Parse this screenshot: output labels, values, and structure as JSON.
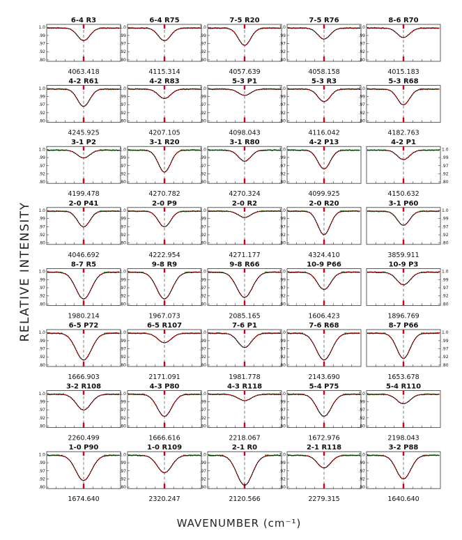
{
  "chart_data": {
    "type": "line",
    "xlabel": "WAVENUMBER  (cm⁻¹)",
    "ylabel": "RELATIVE INTENSITY",
    "yticks": [
      "1.0",
      ".99",
      ".97",
      ".92",
      ".80"
    ],
    "grid_columns": 5,
    "grid_rows": 8,
    "ytick_side_per_column": [
      "left",
      "left",
      "left",
      "left",
      "right"
    ],
    "series_colors": {
      "observed": "#000000",
      "model": "#cc0000",
      "telluric": "#2aa02a",
      "center_marker": "#cc0022"
    },
    "panels": [
      {
        "title": "6-4 R3",
        "center": "4063.418",
        "depth": 0.4,
        "width": 0.55,
        "ytick_side": "left"
      },
      {
        "title": "6-4 R75",
        "center": "4115.314",
        "depth": 0.4,
        "width": 0.55,
        "ytick_side": "left"
      },
      {
        "title": "7-5 R20",
        "center": "4057.639",
        "depth": 0.55,
        "width": 0.55,
        "ytick_side": "left"
      },
      {
        "title": "7-5 R76",
        "center": "4058.158",
        "depth": 0.35,
        "width": 0.55,
        "ytick_side": "left"
      },
      {
        "title": "8-6 R70",
        "center": "4015.183",
        "depth": 0.3,
        "width": 0.55,
        "ytick_side": "left"
      },
      {
        "title": "4-2 R61",
        "center": "4245.925",
        "depth": 0.55,
        "width": 0.55,
        "ytick_side": "left"
      },
      {
        "title": "4-2 R83",
        "center": "4207.105",
        "depth": 0.3,
        "width": 0.55,
        "ytick_side": "left"
      },
      {
        "title": "5-3 P1",
        "center": "4098.043",
        "depth": 0.2,
        "width": 0.55,
        "ytick_side": "left"
      },
      {
        "title": "5-3 R3",
        "center": "4116.042",
        "depth": 0.4,
        "width": 0.55,
        "ytick_side": "left"
      },
      {
        "title": "5-3 R68",
        "center": "4182.763",
        "depth": 0.5,
        "width": 0.55,
        "ytick_side": "left"
      },
      {
        "title": "3-1 P2",
        "center": "4199.478",
        "depth": 0.25,
        "width": 0.55,
        "ytick_side": "left"
      },
      {
        "title": "3-1 R20",
        "center": "4270.782",
        "depth": 0.7,
        "width": 0.55,
        "ytick_side": "left"
      },
      {
        "title": "3-1 R80",
        "center": "4270.324",
        "depth": 0.35,
        "width": 0.55,
        "ytick_side": "left"
      },
      {
        "title": "4-2 P13",
        "center": "4099.925",
        "depth": 0.6,
        "width": 0.55,
        "ytick_side": "left"
      },
      {
        "title": "4-2 P1",
        "center": "4150.632",
        "depth": 0.3,
        "width": 0.55,
        "ytick_side": "right"
      },
      {
        "title": "2-0 P41",
        "center": "4046.692",
        "depth": 0.5,
        "width": 0.55,
        "ytick_side": "left"
      },
      {
        "title": "2-0 P9",
        "center": "4222.954",
        "depth": 0.5,
        "width": 0.55,
        "ytick_side": "left"
      },
      {
        "title": "2-0 R2",
        "center": "4271.177",
        "depth": 0.2,
        "width": 0.55,
        "ytick_side": "left"
      },
      {
        "title": "2-0 R20",
        "center": "4324.410",
        "depth": 0.75,
        "width": 0.55,
        "ytick_side": "left"
      },
      {
        "title": "3-1 P60",
        "center": "3859.911",
        "depth": 0.45,
        "width": 0.55,
        "ytick_side": "right"
      },
      {
        "title": "8-7 R5",
        "center": "1980.214",
        "depth": 0.85,
        "width": 0.7,
        "ytick_side": "left"
      },
      {
        "title": "9-8 R9",
        "center": "1967.073",
        "depth": 0.85,
        "width": 0.7,
        "ytick_side": "left"
      },
      {
        "title": "9-8 R66",
        "center": "2085.165",
        "depth": 0.8,
        "width": 0.7,
        "ytick_side": "left"
      },
      {
        "title": "10-9 P66",
        "center": "1606.423",
        "depth": 0.55,
        "width": 0.6,
        "ytick_side": "left"
      },
      {
        "title": "10-9 P3",
        "center": "1896.769",
        "depth": 0.4,
        "width": 0.6,
        "ytick_side": "right"
      },
      {
        "title": "6-5 P72",
        "center": "1666.903",
        "depth": 0.85,
        "width": 0.7,
        "ytick_side": "left"
      },
      {
        "title": "6-5 R107",
        "center": "2171.091",
        "depth": 0.3,
        "width": 0.6,
        "ytick_side": "left"
      },
      {
        "title": "7-6 P1",
        "center": "1981.778",
        "depth": 0.45,
        "width": 0.6,
        "ytick_side": "left"
      },
      {
        "title": "7-6 R68",
        "center": "2143.690",
        "depth": 0.85,
        "width": 0.7,
        "ytick_side": "left"
      },
      {
        "title": "8-7 P66",
        "center": "1653.678",
        "depth": 0.8,
        "width": 0.6,
        "ytick_side": "right"
      },
      {
        "title": "3-2 R108",
        "center": "2260.499",
        "depth": 0.5,
        "width": 0.65,
        "ytick_side": "left"
      },
      {
        "title": "4-3 P80",
        "center": "1666.616",
        "depth": 0.7,
        "width": 0.65,
        "ytick_side": "left"
      },
      {
        "title": "4-3 R118",
        "center": "2218.067",
        "depth": 0.2,
        "width": 0.6,
        "ytick_side": "left"
      },
      {
        "title": "5-4 P75",
        "center": "1672.976",
        "depth": 0.7,
        "width": 0.65,
        "ytick_side": "left"
      },
      {
        "title": "5-4 R110",
        "center": "2198.043",
        "depth": 0.3,
        "width": 0.6,
        "ytick_side": "left"
      },
      {
        "title": "1-0 P90",
        "center": "1674.640",
        "depth": 0.8,
        "width": 0.7,
        "ytick_side": "left"
      },
      {
        "title": "1-0 R109",
        "center": "2320.247",
        "depth": 0.55,
        "width": 0.65,
        "ytick_side": "left"
      },
      {
        "title": "2-1 R0",
        "center": "2120.566",
        "depth": 0.95,
        "width": 0.7,
        "ytick_side": "left"
      },
      {
        "title": "2-1 R118",
        "center": "2279.315",
        "depth": 0.4,
        "width": 0.6,
        "ytick_side": "left"
      },
      {
        "title": "3-2 P88",
        "center": "1640.640",
        "depth": 0.75,
        "width": 0.65,
        "ytick_side": "left"
      }
    ]
  }
}
